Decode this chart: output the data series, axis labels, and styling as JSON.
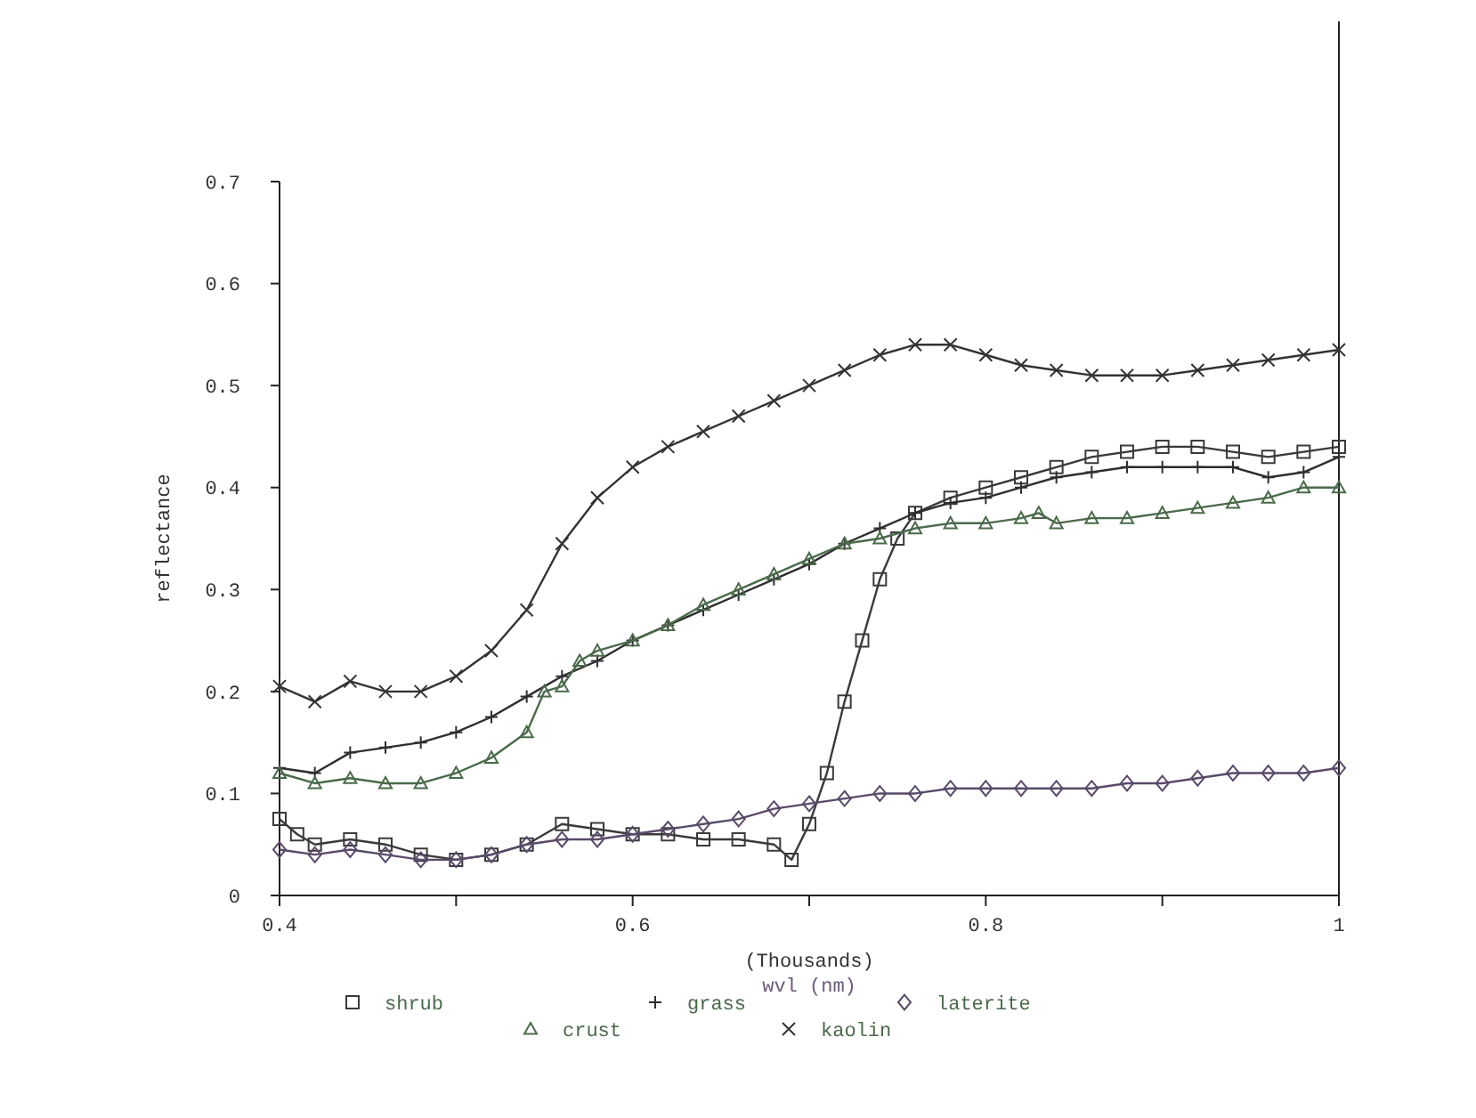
{
  "chart_data": {
    "type": "line",
    "xlabel": "wvl (nm)",
    "ylabel": "reflectance",
    "annotations": [
      "(Thousands)"
    ],
    "xlim": [
      0.4,
      1
    ],
    "xticks": [
      0.4,
      {
        "value": 0.5,
        "label": null
      },
      0.6,
      {
        "value": 0.7,
        "label": null
      },
      0.8,
      {
        "value": 0.9,
        "label": null
      },
      {
        "value": 1,
        "label": "1"
      }
    ],
    "ylim": [
      0,
      0.7
    ],
    "yticks": [
      0,
      0.1,
      0.2,
      0.3,
      0.4,
      0.5,
      0.6,
      0.7
    ],
    "grid": false,
    "legend": "bottom",
    "line_style": "solid",
    "series": [
      {
        "name": "shrub",
        "color": "#3a3a3a",
        "marker": "square",
        "x": [
          0.4,
          0.41,
          0.42,
          0.44,
          0.46,
          0.48,
          0.5,
          0.52,
          0.54,
          0.56,
          0.58,
          0.6,
          0.62,
          0.64,
          0.66,
          0.68,
          0.69,
          0.7,
          0.71,
          0.72,
          0.73,
          0.74,
          0.75,
          0.76,
          0.78,
          0.8,
          0.82,
          0.84,
          0.86,
          0.88,
          0.9,
          0.92,
          0.94,
          0.96,
          0.98,
          1
        ],
        "values": [
          0.075,
          0.06,
          0.05,
          0.055,
          0.05,
          0.04,
          0.035,
          0.04,
          0.05,
          0.07,
          0.065,
          0.06,
          0.06,
          0.055,
          0.055,
          0.05,
          0.035,
          0.07,
          0.12,
          0.19,
          0.25,
          0.31,
          0.35,
          0.375,
          0.39,
          0.4,
          0.41,
          0.42,
          0.43,
          0.435,
          0.44,
          0.44,
          0.435,
          0.43,
          0.435,
          0.44
        ]
      },
      {
        "name": "grass",
        "color": "#2e2e2e",
        "marker": "cross",
        "x": [
          0.4,
          0.42,
          0.44,
          0.46,
          0.48,
          0.5,
          0.52,
          0.54,
          0.56,
          0.58,
          0.6,
          0.62,
          0.64,
          0.66,
          0.68,
          0.7,
          0.72,
          0.74,
          0.76,
          0.78,
          0.8,
          0.82,
          0.84,
          0.86,
          0.88,
          0.9,
          0.92,
          0.94,
          0.96,
          0.98,
          1
        ],
        "values": [
          0.125,
          0.12,
          0.14,
          0.145,
          0.15,
          0.16,
          0.175,
          0.195,
          0.215,
          0.23,
          0.25,
          0.265,
          0.28,
          0.295,
          0.31,
          0.325,
          0.345,
          0.36,
          0.375,
          0.385,
          0.39,
          0.4,
          0.41,
          0.415,
          0.42,
          0.42,
          0.42,
          0.42,
          0.41,
          0.415,
          0.43
        ]
      },
      {
        "name": "laterite",
        "color": "#5a4a6a",
        "marker": "diamond",
        "x": [
          0.4,
          0.42,
          0.44,
          0.46,
          0.48,
          0.5,
          0.52,
          0.54,
          0.56,
          0.58,
          0.6,
          0.62,
          0.64,
          0.66,
          0.68,
          0.7,
          0.72,
          0.74,
          0.76,
          0.78,
          0.8,
          0.82,
          0.84,
          0.86,
          0.88,
          0.9,
          0.92,
          0.94,
          0.96,
          0.98,
          1
        ],
        "values": [
          0.045,
          0.04,
          0.045,
          0.04,
          0.035,
          0.035,
          0.04,
          0.05,
          0.055,
          0.055,
          0.06,
          0.065,
          0.07,
          0.075,
          0.085,
          0.09,
          0.095,
          0.1,
          0.1,
          0.105,
          0.105,
          0.105,
          0.105,
          0.105,
          0.11,
          0.11,
          0.115,
          0.12,
          0.12,
          0.12,
          0.125
        ]
      },
      {
        "name": "crust",
        "color": "#4a6a4a",
        "marker": "triangle",
        "x": [
          0.4,
          0.42,
          0.44,
          0.46,
          0.48,
          0.5,
          0.52,
          0.54,
          0.55,
          0.56,
          0.57,
          0.58,
          0.6,
          0.62,
          0.64,
          0.66,
          0.68,
          0.7,
          0.72,
          0.74,
          0.76,
          0.78,
          0.8,
          0.82,
          0.83,
          0.84,
          0.86,
          0.88,
          0.9,
          0.92,
          0.94,
          0.96,
          0.98,
          1
        ],
        "values": [
          0.12,
          0.11,
          0.115,
          0.11,
          0.11,
          0.12,
          0.135,
          0.16,
          0.2,
          0.205,
          0.23,
          0.24,
          0.25,
          0.265,
          0.285,
          0.3,
          0.315,
          0.33,
          0.345,
          0.35,
          0.36,
          0.365,
          0.365,
          0.37,
          0.375,
          0.365,
          0.37,
          0.37,
          0.375,
          0.38,
          0.385,
          0.39,
          0.4,
          0.4
        ]
      },
      {
        "name": "kaolin",
        "color": "#333333",
        "marker": "x",
        "x": [
          0.4,
          0.42,
          0.44,
          0.46,
          0.48,
          0.5,
          0.52,
          0.54,
          0.56,
          0.58,
          0.6,
          0.62,
          0.64,
          0.66,
          0.68,
          0.7,
          0.72,
          0.74,
          0.76,
          0.78,
          0.8,
          0.82,
          0.84,
          0.86,
          0.88,
          0.9,
          0.92,
          0.94,
          0.96,
          0.98,
          1
        ],
        "values": [
          0.205,
          0.19,
          0.21,
          0.2,
          0.2,
          0.215,
          0.24,
          0.28,
          0.345,
          0.39,
          0.42,
          0.44,
          0.455,
          0.47,
          0.485,
          0.5,
          0.515,
          0.53,
          0.54,
          0.54,
          0.53,
          0.52,
          0.515,
          0.51,
          0.51,
          0.51,
          0.515,
          0.52,
          0.525,
          0.53,
          0.535
        ]
      }
    ]
  }
}
